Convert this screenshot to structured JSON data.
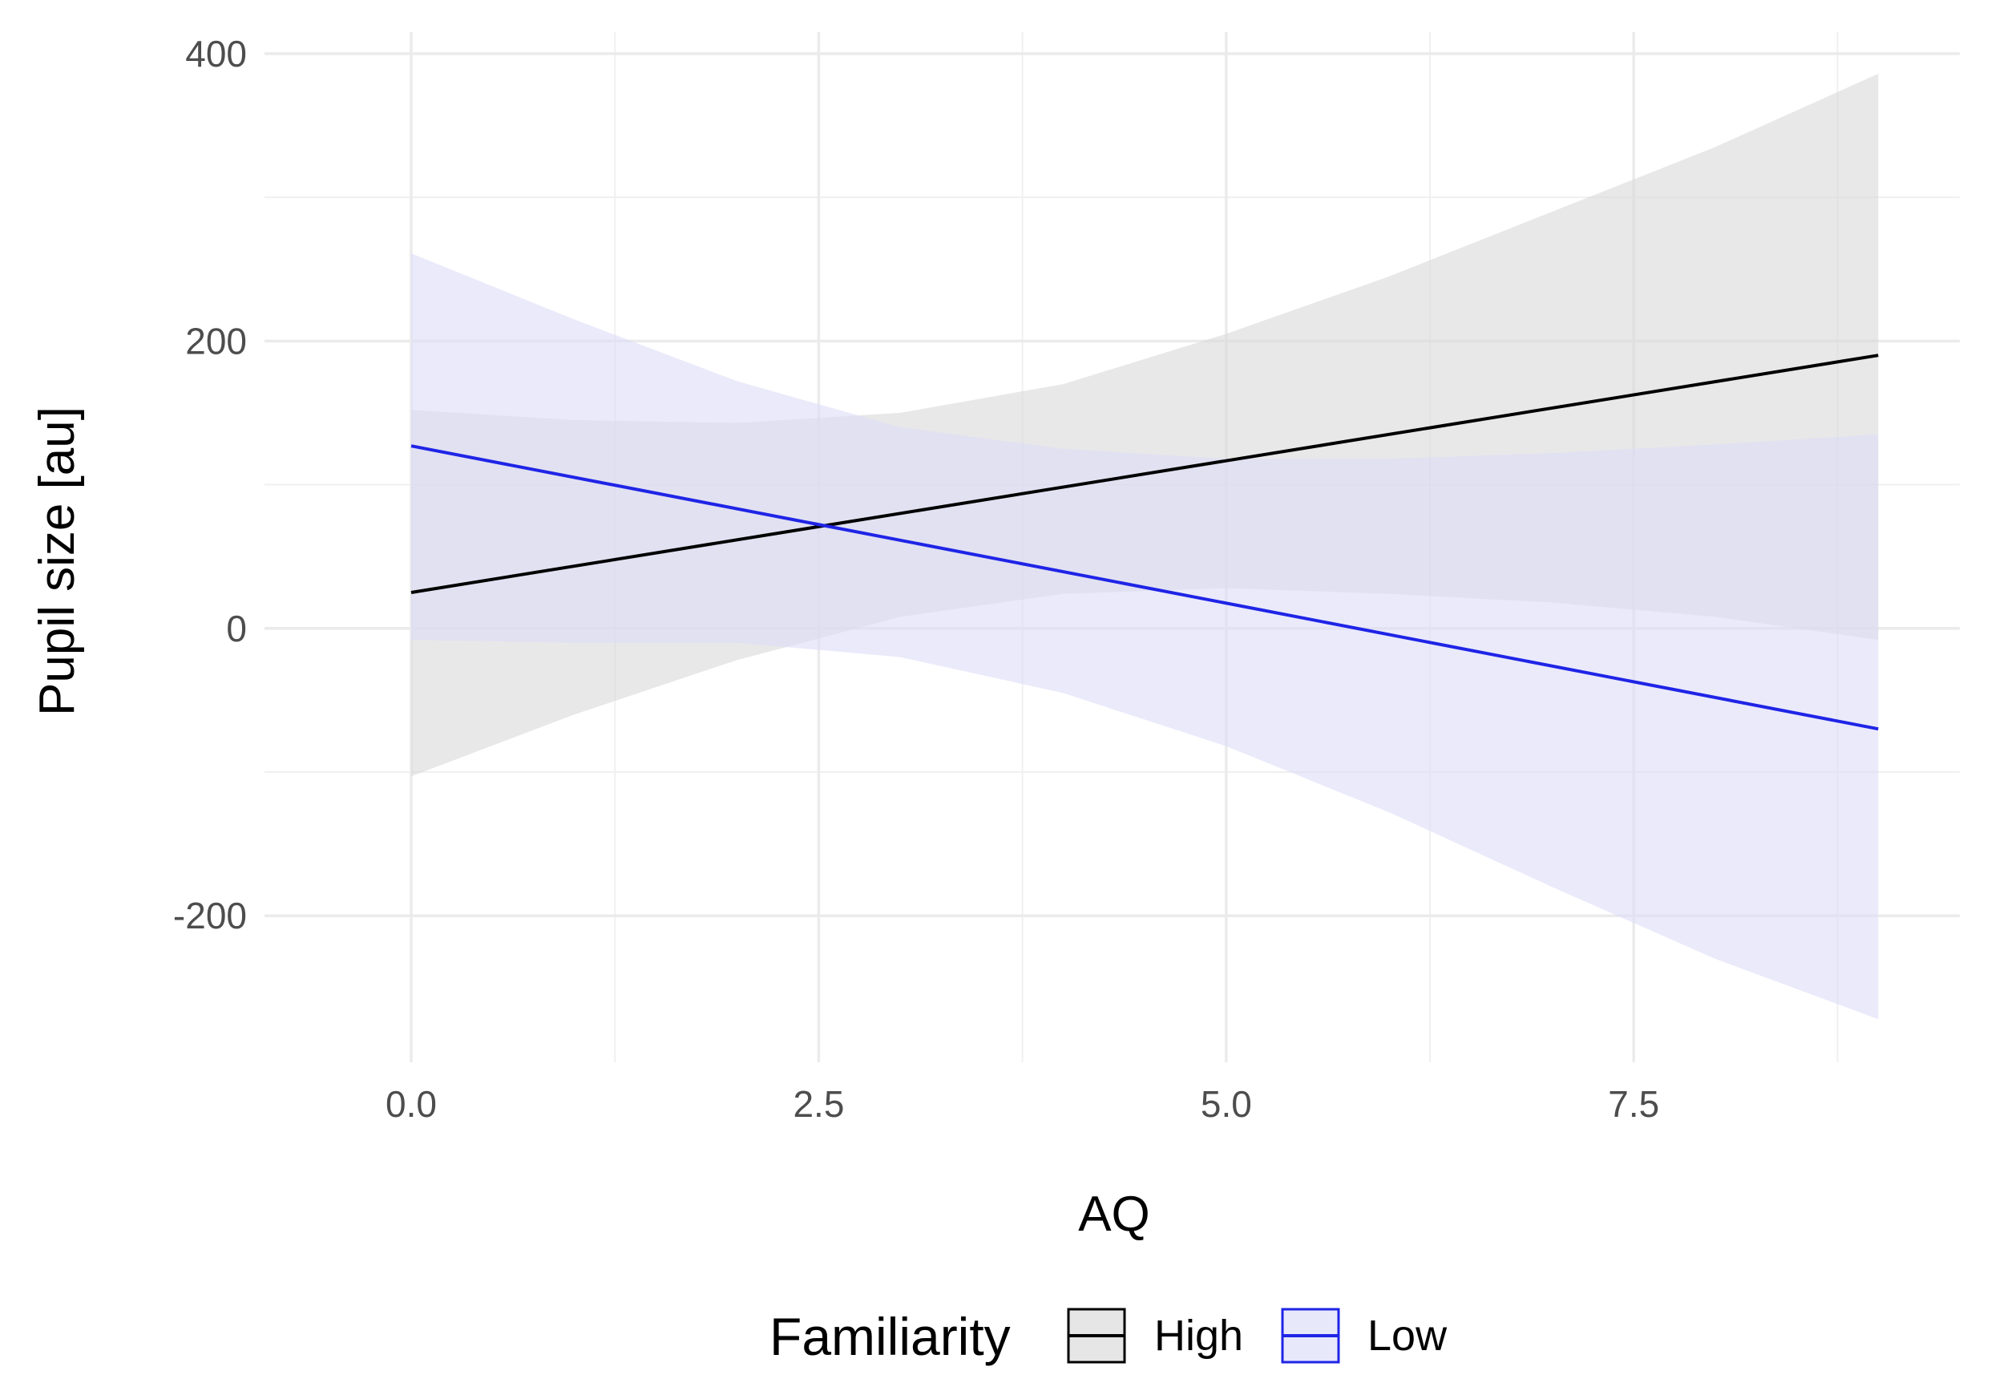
{
  "chart_data": {
    "type": "line",
    "title": "",
    "xlabel": "AQ",
    "ylabel": "Pupil size [au]",
    "xlim": [
      -0.9,
      9.5
    ],
    "ylim": [
      -302,
      415
    ],
    "x_ticks": [
      0.0,
      2.5,
      5.0,
      7.5
    ],
    "x_tick_labels": [
      "0.0",
      "2.5",
      "5.0",
      "7.5"
    ],
    "x_minor_ticks": [
      1.25,
      3.75,
      6.25,
      8.75
    ],
    "y_ticks": [
      -200,
      0,
      200,
      400
    ],
    "y_tick_labels": [
      "-200",
      "0",
      "200",
      "400"
    ],
    "y_minor_ticks": [
      -100,
      100,
      300
    ],
    "grid": true,
    "legend": {
      "title": "Familiarity",
      "position": "bottom",
      "entries": [
        "High",
        "Low"
      ]
    },
    "series": [
      {
        "name": "High",
        "color": "#000000",
        "ribbon_color": "#d9d9d9",
        "x": [
          0,
          9
        ],
        "values": [
          25,
          190
        ],
        "ribbon": {
          "x": [
            0,
            1,
            2,
            3,
            4,
            5,
            6,
            7,
            8,
            9
          ],
          "lower": [
            -103,
            -60,
            -22,
            8,
            24,
            28,
            24,
            18,
            8,
            -8
          ],
          "upper": [
            152,
            145,
            143,
            150,
            170,
            205,
            245,
            290,
            335,
            386
          ]
        }
      },
      {
        "name": "Low",
        "color": "#1f24e6",
        "ribbon_color": "#dcdcf8",
        "x": [
          0,
          9
        ],
        "values": [
          127,
          -70
        ],
        "ribbon": {
          "x": [
            0,
            1,
            2,
            3,
            4,
            5,
            6,
            7,
            8,
            9
          ],
          "lower": [
            -8,
            -10,
            -10,
            -20,
            -45,
            -82,
            -128,
            -180,
            -230,
            -272
          ],
          "upper": [
            261,
            215,
            172,
            140,
            125,
            118,
            118,
            122,
            128,
            135
          ]
        }
      }
    ]
  }
}
